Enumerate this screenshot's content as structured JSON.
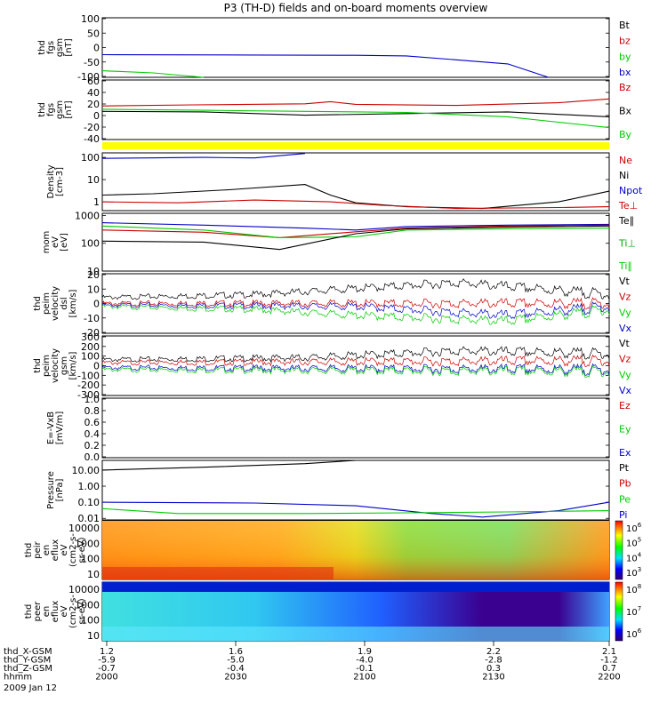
{
  "title": "P3 (TH-D) fields and on-board moments overview",
  "date_label": "2009 Jan 12",
  "chart_data": [
    {
      "type": "line",
      "ylabel": [
        "thd",
        "fgs",
        "gsm",
        "[nT]"
      ],
      "yticks": [
        "100",
        "50",
        "0",
        "-50",
        "-100"
      ],
      "ylim": [
        -100,
        100
      ],
      "legend": [
        {
          "name": "Bt",
          "color": "#000000"
        },
        {
          "name": "bz",
          "color": "#cc0000"
        },
        {
          "name": "by",
          "color": "#00cc00"
        },
        {
          "name": "bx",
          "color": "#0000cc"
        }
      ],
      "series": [
        {
          "name": "bx",
          "color": "#0000cc",
          "x": [
            0,
            0.3,
            0.5,
            0.6,
            0.8,
            0.88
          ],
          "y": [
            -24,
            -25,
            -26,
            -28,
            -55,
            -100
          ]
        },
        {
          "name": "by",
          "color": "#00cc00",
          "x": [
            0,
            0.1,
            0.2
          ],
          "y": [
            -78,
            -85,
            -100
          ]
        }
      ]
    },
    {
      "type": "line",
      "ylabel": [
        "thd",
        "fgs",
        "gsm",
        "[nT]"
      ],
      "yticks": [
        "60",
        "40",
        "20",
        "0",
        "-20",
        "-40"
      ],
      "ylim": [
        -50,
        60
      ],
      "legend": [
        {
          "name": "Bz",
          "color": "#cc0000"
        },
        {
          "name": "Bx",
          "color": "#000000"
        },
        {
          "name": "By",
          "color": "#00cc00"
        }
      ],
      "series": [
        {
          "name": "Bz",
          "color": "#cc0000",
          "x": [
            0,
            0.18,
            0.4,
            0.45,
            0.5,
            0.7,
            0.9,
            1.0
          ],
          "y": [
            12,
            14,
            16,
            20,
            15,
            13,
            18,
            25
          ]
        },
        {
          "name": "Bx",
          "color": "#000000",
          "x": [
            0,
            0.2,
            0.4,
            0.6,
            0.8,
            1.0
          ],
          "y": [
            2,
            1,
            -5,
            -2,
            1,
            -8
          ]
        },
        {
          "name": "By",
          "color": "#00cc00",
          "x": [
            0,
            0.2,
            0.4,
            0.6,
            0.8,
            0.9,
            1.0
          ],
          "y": [
            6,
            4,
            2,
            0,
            -8,
            -18,
            -28
          ]
        }
      ]
    },
    {
      "type": "line",
      "ylabel": [
        "Density",
        "[cm-3]"
      ],
      "yticks": [
        "100",
        "10",
        "1"
      ],
      "ylim": [
        0.4,
        160
      ],
      "log": true,
      "legend": [
        {
          "name": "Ne",
          "color": "#cc0000"
        },
        {
          "name": "Ni",
          "color": "#000000"
        },
        {
          "name": "Npot",
          "color": "#0000cc"
        },
        {
          "name": "Te⊥",
          "color": "#cc0000"
        }
      ],
      "series": [
        {
          "name": "Npot",
          "color": "#0000cc",
          "x": [
            0,
            0.2,
            0.3,
            0.4
          ],
          "y": [
            90,
            100,
            95,
            150
          ]
        },
        {
          "name": "Ni",
          "color": "#000000",
          "x": [
            0,
            0.1,
            0.25,
            0.4,
            0.45,
            0.5,
            0.6,
            0.75,
            0.9,
            1.0
          ],
          "y": [
            2,
            2.3,
            3.5,
            6,
            2,
            0.9,
            0.6,
            0.5,
            1,
            3
          ]
        },
        {
          "name": "Ne",
          "color": "#cc0000",
          "x": [
            0,
            0.15,
            0.3,
            0.45,
            0.55,
            0.7,
            0.9,
            1.0
          ],
          "y": [
            1,
            0.9,
            1.2,
            1.0,
            0.7,
            0.5,
            0.55,
            0.6
          ]
        }
      ]
    },
    {
      "type": "line",
      "ylabel": [
        "mom",
        "eV",
        "[eV]"
      ],
      "yticks": [
        "1000",
        "100",
        "10"
      ],
      "ylim": [
        10,
        1200
      ],
      "log": true,
      "legend": [
        {
          "name": "Te∥",
          "color": "#000000"
        },
        {
          "name": "Ti⊥",
          "color": "#00aa00"
        },
        {
          "name": "Ti∥",
          "color": "#00cc00"
        }
      ],
      "series": [
        {
          "name": "Ti⊥",
          "color": "#0000cc",
          "x": [
            0,
            0.2,
            0.4,
            0.5,
            0.6,
            0.8,
            1.0
          ],
          "y": [
            550,
            450,
            350,
            300,
            400,
            450,
            480
          ]
        },
        {
          "name": "Te∥",
          "color": "#cc0000",
          "x": [
            0,
            0.2,
            0.35,
            0.5,
            0.6,
            0.8,
            1.0
          ],
          "y": [
            300,
            250,
            160,
            260,
            350,
            420,
            450
          ]
        },
        {
          "name": "Ti∥",
          "color": "#00cc00",
          "x": [
            0,
            0.2,
            0.35,
            0.5,
            0.6,
            0.8,
            1.0
          ],
          "y": [
            420,
            300,
            160,
            170,
            300,
            330,
            350
          ]
        },
        {
          "name": "Tell",
          "color": "#000000",
          "x": [
            0,
            0.2,
            0.35,
            0.5,
            0.6,
            0.8,
            1.0
          ],
          "y": [
            120,
            110,
            60,
            220,
            330,
            380,
            420
          ]
        }
      ]
    },
    {
      "type": "line",
      "ylabel": [
        "thd",
        "peim",
        "velocity",
        "dsl",
        "[km/s]"
      ],
      "yticks": [
        "20",
        "10",
        "0",
        "-10",
        "-20"
      ],
      "ylim": [
        -20,
        20
      ],
      "legend": [
        {
          "name": "Vt",
          "color": "#000000"
        },
        {
          "name": "Vz",
          "color": "#cc0000"
        },
        {
          "name": "Vy",
          "color": "#00cc00"
        },
        {
          "name": "Vx",
          "color": "#0000cc"
        }
      ],
      "series": [
        {
          "name": "Vt",
          "color": "#000000",
          "x": [
            0,
            0.3,
            0.5,
            0.7,
            1.0
          ],
          "y": [
            4,
            6,
            10,
            14,
            6
          ]
        },
        {
          "name": "Vz",
          "color": "#cc0000",
          "x": [
            0,
            0.5,
            1.0
          ],
          "y": [
            0,
            0,
            0
          ]
        },
        {
          "name": "Vx",
          "color": "#0000cc",
          "x": [
            0,
            0.5,
            0.8,
            1.0
          ],
          "y": [
            -1,
            -2,
            -8,
            -2
          ]
        },
        {
          "name": "Vy",
          "color": "#00cc00",
          "x": [
            0,
            0.3,
            0.5,
            0.8,
            1.0
          ],
          "y": [
            -2,
            -4,
            -8,
            -12,
            -4
          ]
        }
      ]
    },
    {
      "type": "line",
      "ylabel": [
        "thd",
        "peim",
        "velocity",
        "gsm",
        "[km/s]"
      ],
      "yticks": [
        "300",
        "200",
        "100",
        "0",
        "-100",
        "-200",
        "-300"
      ],
      "ylim": [
        -300,
        300
      ],
      "legend": [
        {
          "name": "Vt",
          "color": "#000000"
        },
        {
          "name": "Vz",
          "color": "#cc0000"
        },
        {
          "name": "Vy",
          "color": "#00cc00"
        },
        {
          "name": "Vx",
          "color": "#0000cc"
        }
      ],
      "series": [
        {
          "name": "Vt",
          "color": "#000000",
          "x": [
            0,
            0.4,
            0.7,
            1.0
          ],
          "y": [
            60,
            80,
            150,
            120
          ]
        },
        {
          "name": "Vz",
          "color": "#cc0000",
          "x": [
            0,
            0.5,
            1.0
          ],
          "y": [
            30,
            40,
            50
          ]
        },
        {
          "name": "Vx",
          "color": "#0000cc",
          "x": [
            0,
            0.5,
            1.0
          ],
          "y": [
            -20,
            -30,
            -40
          ]
        },
        {
          "name": "Vy",
          "color": "#00cc00",
          "x": [
            0,
            0.5,
            1.0
          ],
          "y": [
            -40,
            -50,
            -60
          ]
        }
      ]
    },
    {
      "type": "line",
      "ylabel": [
        "E=-VxB",
        "[mV/m]"
      ],
      "yticks": [
        "1.0",
        "0.8",
        "0.6",
        "0.4",
        "0.2",
        "0.0"
      ],
      "ylim": [
        0,
        1
      ],
      "legend": [
        {
          "name": "Ez",
          "color": "#cc0000"
        },
        {
          "name": "Ey",
          "color": "#00cc00"
        },
        {
          "name": "Ex",
          "color": "#0000cc"
        }
      ],
      "series": []
    },
    {
      "type": "line",
      "ylabel": [
        "Pressure",
        "[nPa]"
      ],
      "yticks": [
        "10.00",
        "1.00",
        "0.10",
        "0.01"
      ],
      "ylim": [
        0.008,
        40
      ],
      "log": true,
      "legend": [
        {
          "name": "Pt",
          "color": "#000000"
        },
        {
          "name": "Pb",
          "color": "#cc0000"
        },
        {
          "name": "Pe",
          "color": "#00cc00"
        },
        {
          "name": "Pi",
          "color": "#0000cc"
        }
      ],
      "series": [
        {
          "name": "Pt",
          "color": "#000000",
          "x": [
            0,
            0.2,
            0.4,
            0.5
          ],
          "y": [
            10,
            15,
            25,
            40
          ]
        },
        {
          "name": "Pi",
          "color": "#0000cc",
          "x": [
            0,
            0.3,
            0.5,
            0.65,
            0.75,
            0.9,
            1.0
          ],
          "y": [
            0.1,
            0.09,
            0.06,
            0.02,
            0.012,
            0.03,
            0.1
          ]
        },
        {
          "name": "Pe",
          "color": "#00cc00",
          "x": [
            0,
            0.15,
            0.4,
            0.6,
            0.8,
            1.0
          ],
          "y": [
            0.04,
            0.02,
            0.02,
            0.022,
            0.025,
            0.03
          ]
        }
      ]
    },
    {
      "type": "heatmap",
      "ylabel": [
        "thd",
        "peir",
        "en",
        "eflux",
        "eV",
        "(cm2-s-",
        "sr-eV)"
      ],
      "yticks": [
        "10000",
        "1000",
        "100",
        "10"
      ],
      "colorbar_ticks": [
        "10^6",
        "10^5",
        "10^4",
        "10^3"
      ]
    },
    {
      "type": "heatmap",
      "ylabel": [
        "thd",
        "peer",
        "en",
        "eflux",
        "eV",
        "(cm2-s-",
        "sr-eV)"
      ],
      "yticks": [
        "10000",
        "1000",
        "100",
        "10"
      ],
      "colorbar_ticks": [
        "10^8",
        "10^7",
        "10^6"
      ]
    }
  ],
  "x_axis": {
    "rows": [
      {
        "label": "thd_X-GSM",
        "values": [
          "1.2",
          "1.6",
          "1.9",
          "2.2",
          "2.1"
        ]
      },
      {
        "label": "thd_Y-GSM",
        "values": [
          "-5.9",
          "-5.0",
          "-4.0",
          "-2.8",
          "-1.2"
        ]
      },
      {
        "label": "thd_Z-GSM",
        "values": [
          "-0.7",
          "-0.4",
          "-0.1",
          "0.3",
          "0.7"
        ]
      },
      {
        "label": "hhmm",
        "values": [
          "2000",
          "2030",
          "2100",
          "2130",
          "2200"
        ]
      }
    ]
  }
}
